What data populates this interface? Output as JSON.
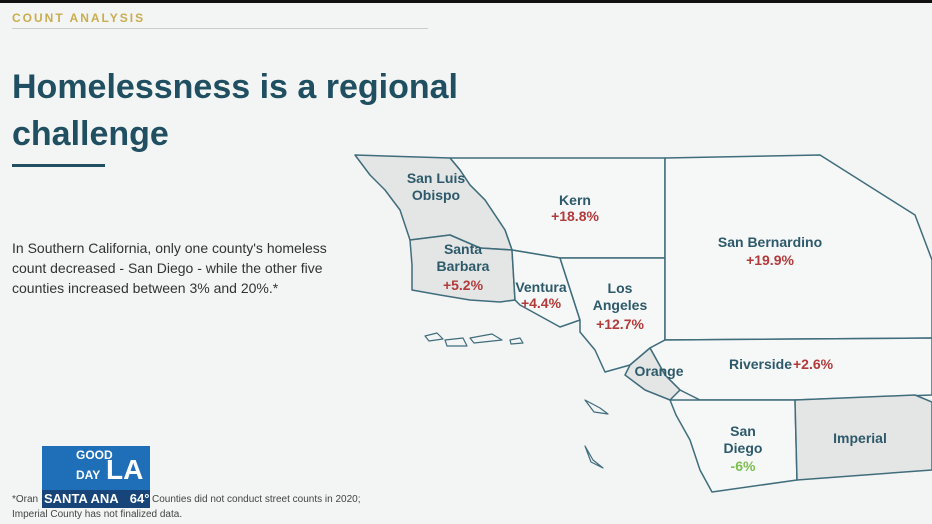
{
  "header": {
    "label": "COUNT ANALYSIS",
    "title": "Homelessness is a regional challenge"
  },
  "body": "In Southern California, only one county's homeless count decreased - San Diego - while the other five counties increased between 3% and 20%.*",
  "counties": [
    {
      "name": "San Luis Obispo"
    },
    {
      "name": "Kern",
      "change": "+18.8%"
    },
    {
      "name": "San Bernardino",
      "change": "+19.9%"
    },
    {
      "name": "Santa Barbara",
      "change": "+5.2%"
    },
    {
      "name": "Ventura",
      "change": "+4.4%"
    },
    {
      "name": "Los Angeles",
      "change": "+12.7%"
    },
    {
      "name": "Orange"
    },
    {
      "name": "Riverside",
      "change": "+2.6%"
    },
    {
      "name": "San Diego",
      "change": "-6%"
    },
    {
      "name": "Imperial"
    }
  ],
  "footnote": {
    "start": "*Oran",
    "line1": "Counties did not conduct street counts in 2020;",
    "line2": "Imperial County has not finalized data."
  },
  "overlay": {
    "logo_top": "GOOD",
    "logo_mid": "DAY",
    "logo_big": "LA",
    "city": "SANTA ANA",
    "temp": "64°"
  }
}
